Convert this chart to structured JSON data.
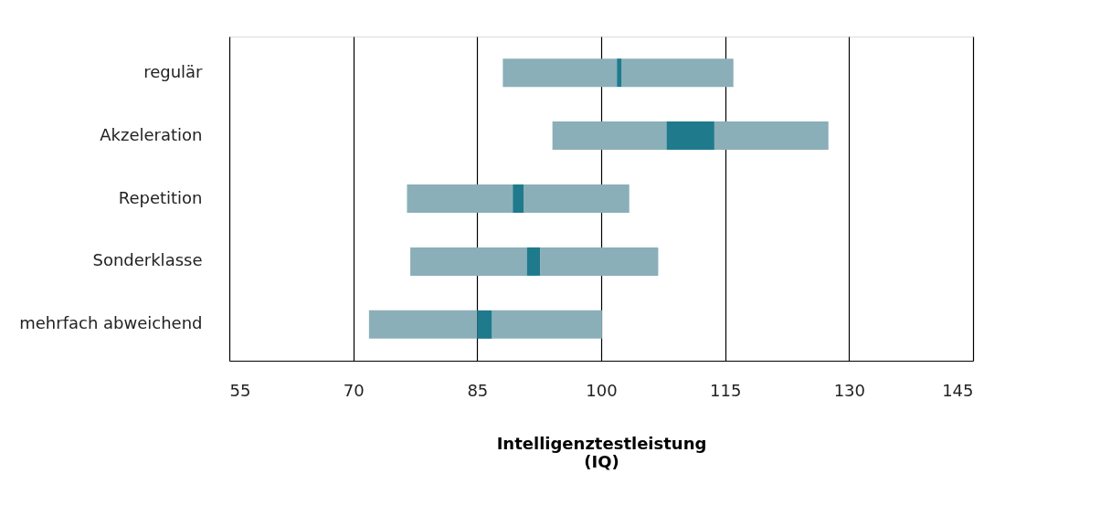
{
  "chart_data": {
    "type": "bar",
    "orientation": "horizontal",
    "xlabel": "Intelligenztestleistung\n(IQ)",
    "categories": [
      "regulär",
      "Akzeleration",
      "Repetition",
      "Sonderklasse",
      "mehrfach abweichend"
    ],
    "series": [
      {
        "color": "#8aafb8",
        "base": [
          88.1,
          94.1,
          76.5,
          76.9,
          71.9
        ],
        "values": [
          13.8,
          13.8,
          12.8,
          14.1,
          13.1
        ]
      },
      {
        "color": "#1f7a8c",
        "base": [
          101.9,
          107.9,
          89.3,
          91.0,
          85.0
        ],
        "values": [
          0.6,
          5.8,
          1.3,
          1.6,
          1.8
        ]
      },
      {
        "color": "#8aafb8",
        "base": [
          102.5,
          113.7,
          90.6,
          92.6,
          86.8
        ],
        "values": [
          13.5,
          13.8,
          12.8,
          14.3,
          13.3
        ]
      }
    ],
    "xlim": [
      55,
      145
    ],
    "xticks": [
      55,
      70,
      85,
      100,
      115,
      130,
      145
    ],
    "grid": "x",
    "legend": false
  }
}
